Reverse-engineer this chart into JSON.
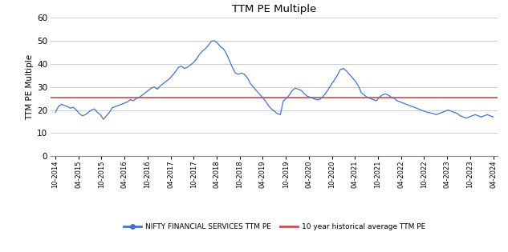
{
  "title": "TTM PE Multiple",
  "ylabel": "TTM PE Multiple",
  "ylim": [
    0,
    60
  ],
  "yticks": [
    0,
    10,
    20,
    30,
    40,
    50,
    60
  ],
  "historical_avg": 25.5,
  "hist_avg_color": "#C0504D",
  "line_color": "#4472C4",
  "background_color": "#FFFFFF",
  "legend_labels": [
    "NIFTY FINANCIAL SERVICES TTM PE",
    "10 year historical average TTM PE"
  ],
  "x_tick_labels": [
    "10-2014",
    "04-2015",
    "10-2015",
    "04-2016",
    "10-2016",
    "04-2017",
    "10-2017",
    "04-2018",
    "10-2018",
    "04-2019",
    "10-2019",
    "04-2020",
    "10-2020",
    "04-2021",
    "10-2021",
    "04-2022",
    "10-2022",
    "04-2023",
    "10-2023",
    "04-2024"
  ],
  "pe_data": [
    19.0,
    21.5,
    22.5,
    22.0,
    21.5,
    20.8,
    21.2,
    20.0,
    18.5,
    17.5,
    18.0,
    19.0,
    20.0,
    20.5,
    19.0,
    18.0,
    16.0,
    17.5,
    19.0,
    21.0,
    21.5,
    22.0,
    22.5,
    23.0,
    23.5,
    24.5,
    24.0,
    25.0,
    25.5,
    26.5,
    27.5,
    28.5,
    29.5,
    30.0,
    29.0,
    30.5,
    31.5,
    32.5,
    33.5,
    35.0,
    36.5,
    38.5,
    39.0,
    38.0,
    38.5,
    39.5,
    40.5,
    42.0,
    44.0,
    45.5,
    46.5,
    48.0,
    49.8,
    50.0,
    49.0,
    47.5,
    46.5,
    44.5,
    41.5,
    38.5,
    36.0,
    35.5,
    36.0,
    35.5,
    34.0,
    31.5,
    30.0,
    28.5,
    27.0,
    25.5,
    24.0,
    22.0,
    20.5,
    19.5,
    18.5,
    18.0,
    24.0,
    25.0,
    26.5,
    28.5,
    29.5,
    29.0,
    28.5,
    27.0,
    26.0,
    25.5,
    25.0,
    24.5,
    24.5,
    25.5,
    27.0,
    29.0,
    31.0,
    33.0,
    35.0,
    37.5,
    38.0,
    37.0,
    35.5,
    34.0,
    32.5,
    30.5,
    27.5,
    26.5,
    25.5,
    25.0,
    24.5,
    24.0,
    25.5,
    26.5,
    27.0,
    26.5,
    25.5,
    25.0,
    24.0,
    23.5,
    23.0,
    22.5,
    22.0,
    21.5,
    21.0,
    20.5,
    20.0,
    19.5,
    19.0,
    18.8,
    18.5,
    18.0,
    18.5,
    19.0,
    19.5,
    20.0,
    19.5,
    19.0,
    18.5,
    17.5,
    17.0,
    16.5,
    17.0,
    17.5,
    18.0,
    17.5,
    17.0,
    17.5,
    18.0,
    17.5,
    17.0
  ]
}
